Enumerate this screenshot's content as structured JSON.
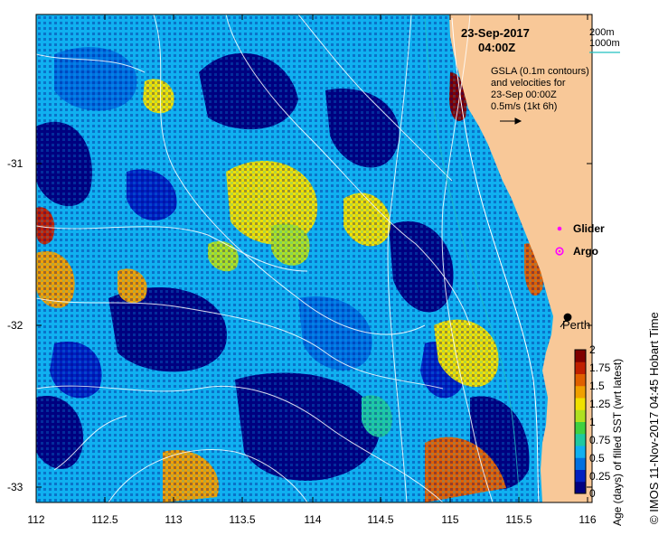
{
  "title": {
    "date": "23-Sep-2017",
    "time": "04:00Z"
  },
  "depth_legend": {
    "line1": "200m",
    "line2": "1000m",
    "line2_color": "#20c0c0"
  },
  "velocity_note": {
    "line1": "GSLA (0.1m contours)",
    "line2": "and velocities for",
    "line3": "23-Sep 00:00Z",
    "line4": "0.5m/s (1kt 6h)"
  },
  "legend": {
    "glider": "Glider",
    "glider_color": "#ff00ff",
    "argo": "Argo",
    "argo_color": "#ff00ff"
  },
  "city": {
    "name": "Perth"
  },
  "axes": {
    "x_ticks": [
      "112",
      "112.5",
      "113",
      "113.5",
      "114",
      "114.5",
      "115",
      "115.5",
      "116"
    ],
    "y_ticks": [
      "-31",
      "-32",
      "-33"
    ],
    "xlim": [
      112,
      116
    ],
    "ylim": [
      -33.05,
      -30.15
    ]
  },
  "colorbar": {
    "title": "Age (days) of filled SST (wrt latest)",
    "ticks": [
      "0",
      "0.25",
      "0.5",
      "0.75",
      "1",
      "1.25",
      "1.5",
      "1.75",
      "2"
    ],
    "range": [
      0,
      2
    ],
    "colors": [
      "#000080",
      "#0020c0",
      "#0070e0",
      "#10b0f0",
      "#20c8a0",
      "#40d040",
      "#b0e020",
      "#f0e000",
      "#f0a000",
      "#e06000",
      "#c02000",
      "#800000"
    ]
  },
  "credit": "© IMOS 11-Nov-2017 04:45 Hobart Time",
  "land_color": "#f8c898"
}
